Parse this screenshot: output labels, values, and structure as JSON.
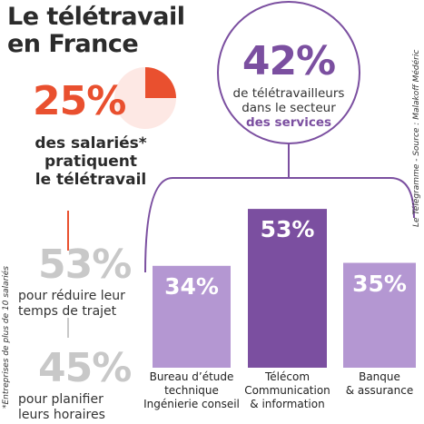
{
  "title": [
    "Le télétravail",
    "en France"
  ],
  "employees_text": [
    "des salariés*",
    "pratiquent",
    "le télétravail"
  ],
  "reasons": [
    {
      "label": "53%",
      "text": [
        "pour réduire leur",
        "temps de trajet"
      ]
    },
    {
      "label": "45%",
      "text": [
        "pour planifier",
        "leurs horaires"
      ]
    }
  ],
  "services": {
    "label": "42%",
    "text": [
      "de télétravailleurs",
      "dans le secteur"
    ],
    "highlight": "des services"
  },
  "footnote": "*Entreprises de plus de 10 salariés",
  "source": "Le Télégramme - Source : Malakoff Médéric",
  "chart_data": [
    {
      "type": "pie",
      "values": [
        25
      ],
      "value_labels": [
        "25%"
      ],
      "color": "#e9502f"
    },
    {
      "type": "bar",
      "categories": [
        "Bureau d’étude\ntechnique\nIngénierie conseil",
        "Télécom\nCommunication\n& information",
        "Banque\n& assurance"
      ],
      "values": [
        34,
        53,
        35
      ],
      "value_labels": [
        "34%",
        "53%",
        "35%"
      ],
      "colors": [
        "#b497d2",
        "#7b4fa0",
        "#b497d2"
      ]
    }
  ]
}
